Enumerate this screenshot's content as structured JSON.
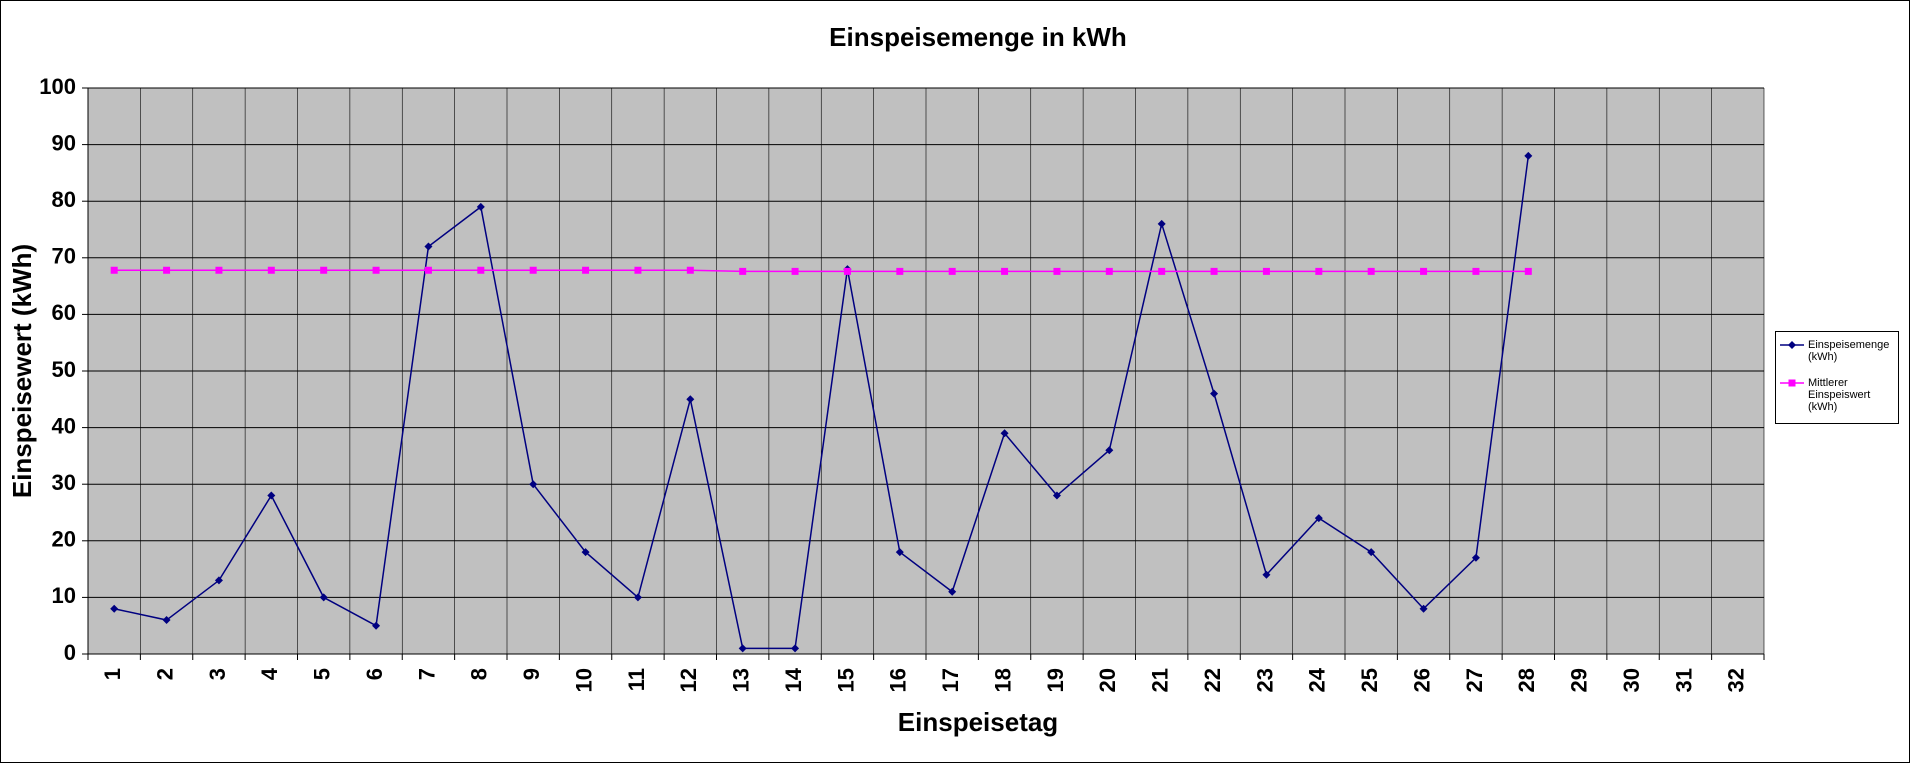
{
  "chart_data": {
    "type": "line",
    "title": "Einspeisemenge in kWh",
    "x_label": "Einspeisetag",
    "y_label": "Einspeisewert  (kWh)",
    "categories": [
      "1",
      "2",
      "3",
      "4",
      "5",
      "6",
      "7",
      "8",
      "9",
      "10",
      "11",
      "12",
      "13",
      "14",
      "15",
      "16",
      "17",
      "18",
      "19",
      "20",
      "21",
      "22",
      "23",
      "24",
      "25",
      "26",
      "27",
      "28",
      "29",
      "30",
      "31",
      "32"
    ],
    "series": [
      {
        "name": "Einspeisemenge (kWh)",
        "color": "#000080",
        "marker": "diamond",
        "values": [
          8,
          6,
          13,
          28,
          10,
          5,
          72,
          79,
          30,
          18,
          10,
          45,
          1,
          1,
          68,
          18,
          11,
          39,
          28,
          36,
          76,
          46,
          14,
          24,
          18,
          8,
          17,
          88,
          null,
          null,
          null,
          null
        ]
      },
      {
        "name": "Mittlerer Einspeiswert (kWh)",
        "color": "#ff00ff",
        "marker": "square",
        "values": [
          67.8,
          67.8,
          67.8,
          67.8,
          67.8,
          67.8,
          67.8,
          67.8,
          67.8,
          67.8,
          67.8,
          67.8,
          67.6,
          67.6,
          67.6,
          67.6,
          67.6,
          67.6,
          67.6,
          67.6,
          67.6,
          67.6,
          67.6,
          67.6,
          67.6,
          67.6,
          67.6,
          67.6,
          null,
          null,
          null,
          null
        ]
      }
    ],
    "ylim": [
      0,
      100
    ],
    "yticks": [
      0,
      10,
      20,
      30,
      40,
      50,
      60,
      70,
      80,
      90,
      100
    ],
    "grid": true,
    "legend": "right"
  }
}
